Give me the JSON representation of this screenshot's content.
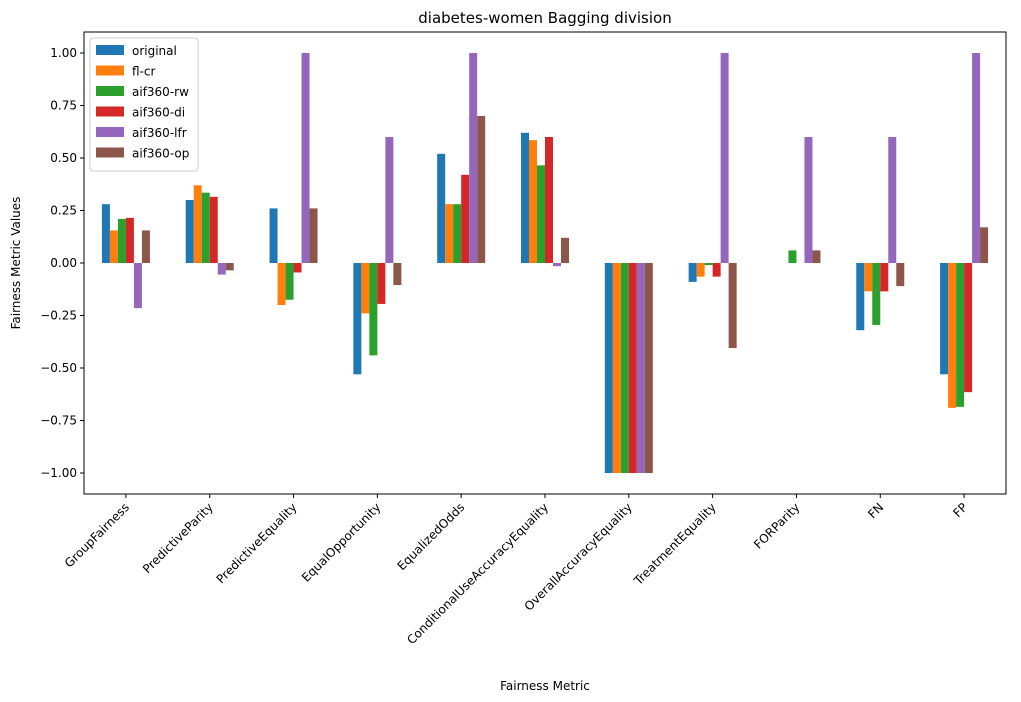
{
  "chart_data": {
    "type": "bar",
    "title": "diabetes-women Bagging division",
    "xlabel": "Fairness Metric",
    "ylabel": "Fairness Metric Values",
    "ylim": [
      -1.1,
      1.1
    ],
    "yticks": [
      -1.0,
      -0.75,
      -0.5,
      -0.25,
      0.0,
      0.25,
      0.5,
      0.75,
      1.0
    ],
    "ytick_labels": [
      "−1.00",
      "−0.75",
      "−0.50",
      "−0.25",
      "0.00",
      "0.25",
      "0.50",
      "0.75",
      "1.00"
    ],
    "grid": false,
    "legend_position": "top-left",
    "categories": [
      "GroupFairness",
      "PredictiveParity",
      "PredictiveEquality",
      "EqualOpportunity",
      "EqualizedOdds",
      "ConditionalUseAccuracyEquality",
      "OverallAccuracyEquality",
      "TreatmentEquality",
      "FORParity",
      "FN",
      "FP"
    ],
    "series": [
      {
        "name": "original",
        "color": "#1f77b4",
        "values": [
          0.28,
          0.3,
          0.26,
          -0.53,
          0.52,
          0.62,
          -1.0,
          -0.09,
          0.0,
          -0.32,
          -0.53
        ]
      },
      {
        "name": "fl-cr",
        "color": "#ff7f0e",
        "values": [
          0.155,
          0.37,
          -0.2,
          -0.24,
          0.28,
          0.585,
          -1.0,
          -0.065,
          0.0,
          -0.135,
          -0.69
        ]
      },
      {
        "name": "aif360-rw",
        "color": "#2ca02c",
        "values": [
          0.21,
          0.335,
          -0.175,
          -0.44,
          0.28,
          0.465,
          -1.0,
          -0.01,
          0.06,
          -0.295,
          -0.685
        ]
      },
      {
        "name": "aif360-di",
        "color": "#d62728",
        "values": [
          0.215,
          0.315,
          -0.045,
          -0.195,
          0.42,
          0.6,
          -1.0,
          -0.065,
          0.0,
          -0.135,
          -0.615
        ]
      },
      {
        "name": "aif360-lfr",
        "color": "#9467bd",
        "values": [
          -0.215,
          -0.055,
          1.0,
          0.6,
          1.0,
          -0.015,
          -1.0,
          1.0,
          0.6,
          0.6,
          1.0
        ]
      },
      {
        "name": "aif360-op",
        "color": "#8c564b",
        "values": [
          0.155,
          -0.035,
          0.26,
          -0.105,
          0.7,
          0.12,
          -1.0,
          -0.405,
          0.06,
          -0.11,
          0.17
        ]
      }
    ]
  }
}
